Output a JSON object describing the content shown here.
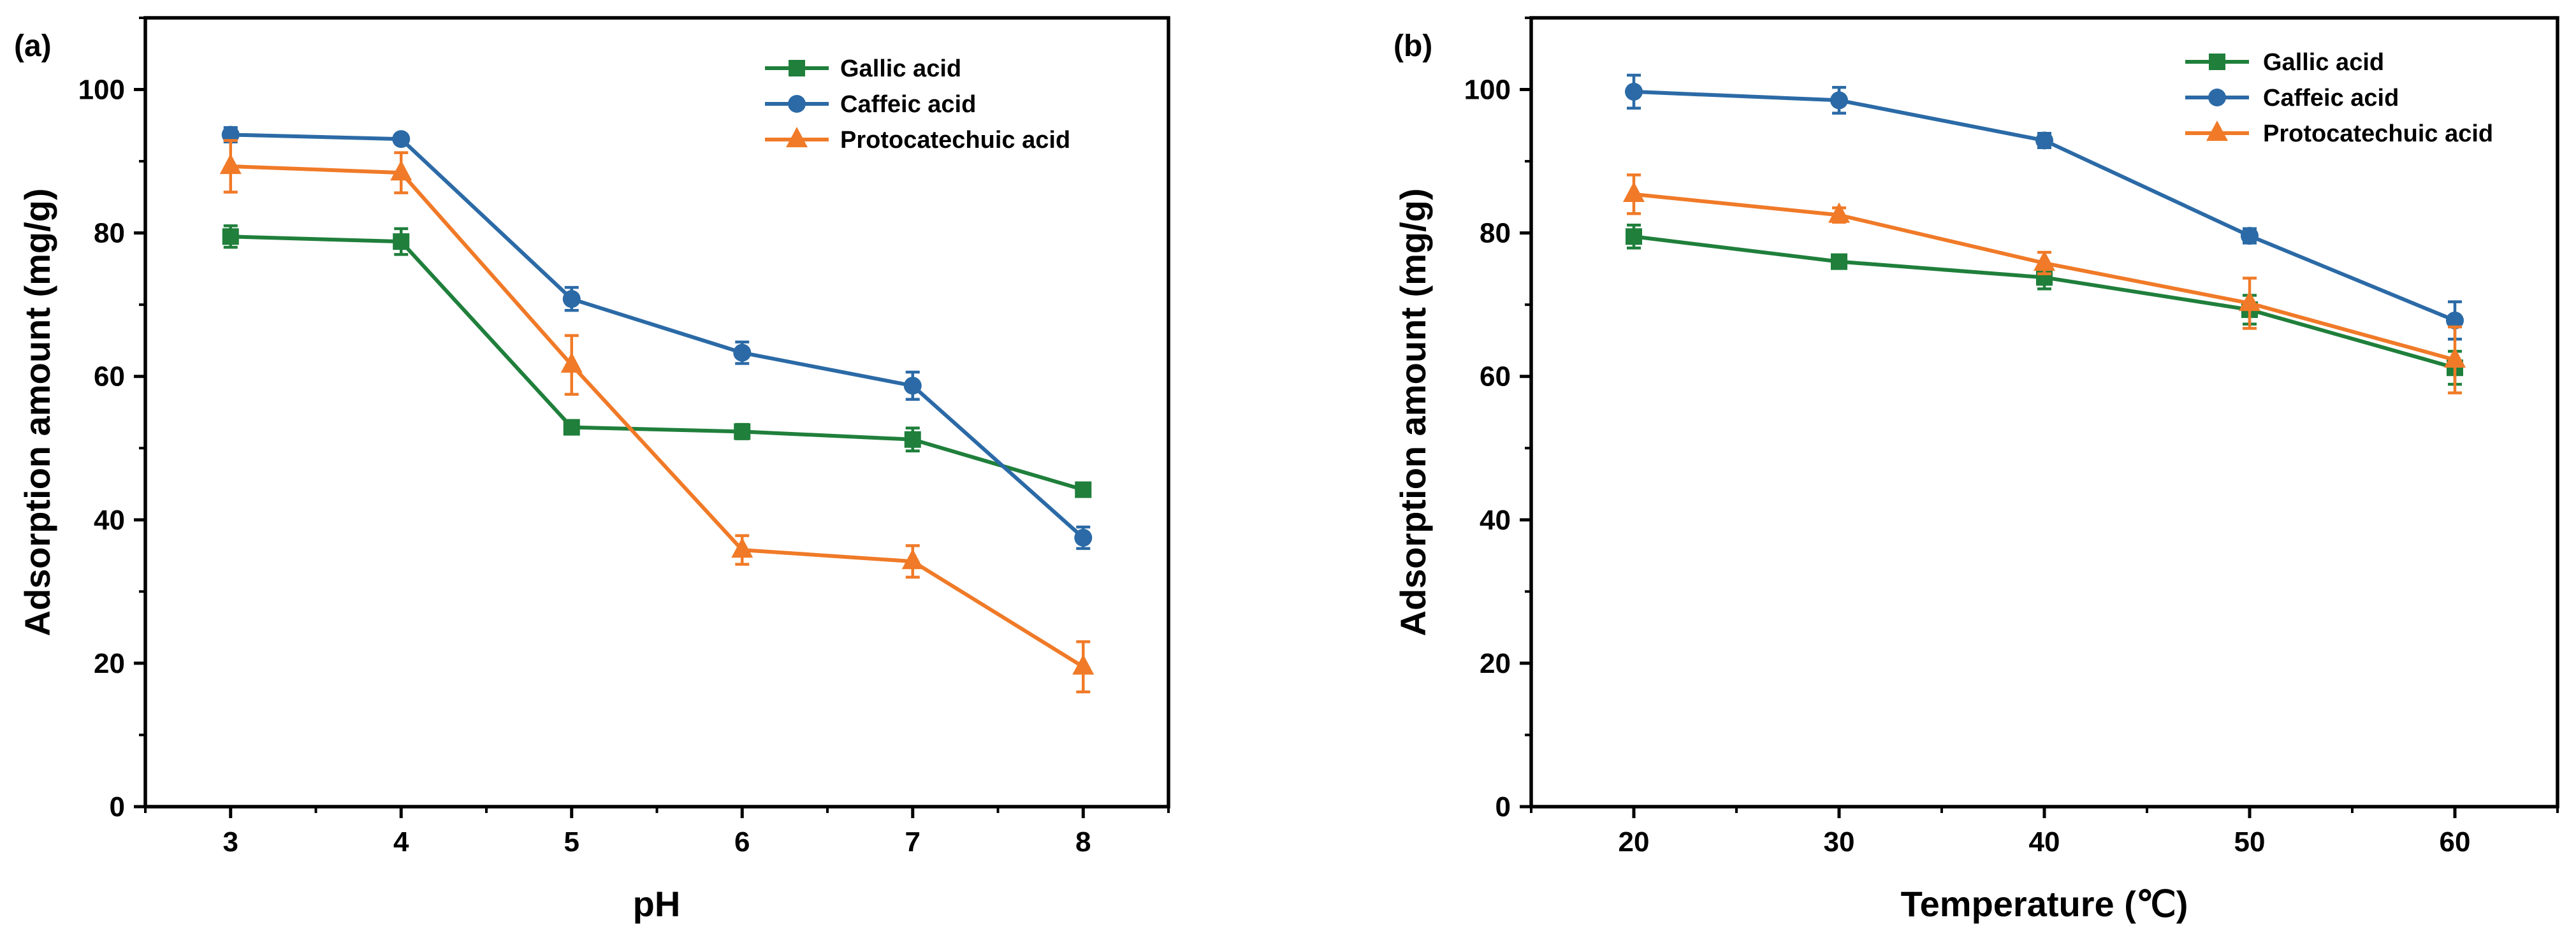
{
  "colors": {
    "Gallic acid": "#1f7f3b",
    "Caffeic acid": "#2b6aa6",
    "Protocatechuic acid": "#f07a28"
  },
  "chart_data": [
    {
      "type": "line",
      "panel_label": "(a)",
      "title": "",
      "xlabel": "pH",
      "ylabel": "Adsorption amount (mg/g)",
      "x": [
        3,
        4,
        5,
        6,
        7,
        8
      ],
      "xlim": [
        2.5,
        8.5
      ],
      "ylim": [
        0,
        110
      ],
      "xticks": [
        3,
        4,
        5,
        6,
        7,
        8
      ],
      "yticks": [
        0,
        20,
        40,
        60,
        80,
        100
      ],
      "legend_position": "top-right",
      "series": [
        {
          "name": "Gallic acid",
          "marker": "square",
          "values": [
            79.5,
            78.8,
            52.9,
            52.3,
            51.2,
            44.2
          ],
          "errors": [
            1.5,
            1.8,
            0.8,
            1.0,
            1.6,
            0.8
          ]
        },
        {
          "name": "Caffeic acid",
          "marker": "circle",
          "values": [
            93.7,
            93.1,
            70.8,
            63.3,
            58.7,
            37.5
          ],
          "errors": [
            1.0,
            0.6,
            1.6,
            1.5,
            1.9,
            1.5
          ]
        },
        {
          "name": "Protocatechuic acid",
          "marker": "triangle",
          "values": [
            89.3,
            88.4,
            61.6,
            35.8,
            34.2,
            19.5
          ],
          "errors": [
            3.6,
            2.8,
            4.1,
            2.0,
            2.2,
            3.5
          ]
        }
      ]
    },
    {
      "type": "line",
      "panel_label": "(b)",
      "title": "",
      "xlabel": "Temperature (℃)",
      "ylabel": "Adsorption amount (mg/g)",
      "x": [
        20,
        30,
        40,
        50,
        60
      ],
      "xlim": [
        15,
        65
      ],
      "ylim": [
        0,
        110
      ],
      "xticks": [
        20,
        30,
        40,
        50,
        60
      ],
      "yticks": [
        0,
        20,
        40,
        60,
        80,
        100
      ],
      "legend_position": "top-right",
      "series": [
        {
          "name": "Gallic acid",
          "marker": "square",
          "values": [
            79.5,
            76.0,
            73.8,
            69.3,
            61.2
          ],
          "errors": [
            1.6,
            0.8,
            1.6,
            2.0,
            2.3
          ]
        },
        {
          "name": "Caffeic acid",
          "marker": "circle",
          "values": [
            99.7,
            98.5,
            92.9,
            79.6,
            67.8
          ],
          "errors": [
            2.3,
            1.8,
            1.0,
            1.0,
            2.6
          ]
        },
        {
          "name": "Protocatechuic acid",
          "marker": "triangle",
          "values": [
            85.4,
            82.5,
            75.8,
            70.2,
            62.3
          ],
          "errors": [
            2.7,
            1.0,
            1.5,
            3.5,
            4.6
          ]
        }
      ]
    }
  ]
}
